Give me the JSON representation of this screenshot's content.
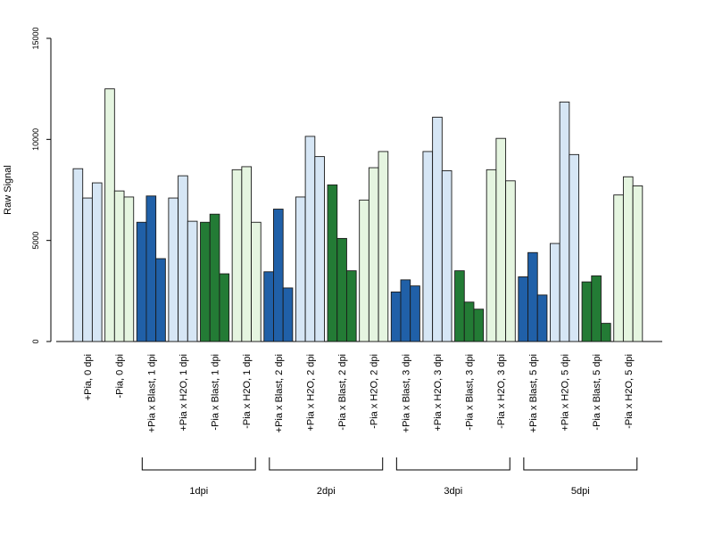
{
  "chart_data": {
    "type": "bar",
    "title": "",
    "xlabel": "",
    "ylabel": "Raw Signal",
    "ylim": [
      0,
      15000
    ],
    "yticks": [
      0,
      5000,
      10000,
      15000
    ],
    "grid": false,
    "legend": "none",
    "categories": [
      "+Pia, 0 dpi",
      "-Pia, 0 dpi",
      "+Pia x Blast, 1 dpi",
      "+Pia x H2O, 1 dpi",
      "-Pia x Blast, 1 dpi",
      "-Pia x H2O, 1 dpi",
      "+Pia x Blast, 2 dpi",
      "+Pia x H2O, 2 dpi",
      "-Pia x Blast, 2 dpi",
      "-Pia x H2O, 2 dpi",
      "+Pia x Blast, 3 dpi",
      "+Pia x H2O, 3 dpi",
      "-Pia x Blast, 3 dpi",
      "-Pia x H2O, 3 dpi",
      "+Pia x Blast, 5 dpi",
      "+Pia x H2O, 5 dpi",
      "-Pia x Blast, 5 dpi",
      "-Pia x H2O, 5 dpi"
    ],
    "replicates": [
      [
        8550,
        7100,
        7850
      ],
      [
        12500,
        7450,
        7150
      ],
      [
        5900,
        7200,
        4100
      ],
      [
        7100,
        8200,
        5950
      ],
      [
        5900,
        6300,
        3350
      ],
      [
        8500,
        8650,
        5900
      ],
      [
        3450,
        6550,
        2650
      ],
      [
        7150,
        10150,
        9150
      ],
      [
        7750,
        5100,
        3500
      ],
      [
        7000,
        8600,
        9400
      ],
      [
        2450,
        3050,
        2750
      ],
      [
        9400,
        11100,
        8450
      ],
      [
        3500,
        1950,
        1600
      ],
      [
        8500,
        10050,
        7950
      ],
      [
        3200,
        4400,
        2300
      ],
      [
        4850,
        11850,
        9250
      ],
      [
        2950,
        3250,
        900
      ],
      [
        7250,
        8150,
        7700
      ]
    ],
    "category_colors": [
      "#d6e6f5",
      "#e5f5e0",
      "#2060a8",
      "#d6e6f5",
      "#237b35",
      "#e5f5e0",
      "#2060a8",
      "#d6e6f5",
      "#237b35",
      "#e5f5e0",
      "#2060a8",
      "#d6e6f5",
      "#237b35",
      "#e5f5e0",
      "#2060a8",
      "#d6e6f5",
      "#237b35",
      "#e5f5e0"
    ],
    "groups": [
      {
        "label": "1dpi",
        "start": 2,
        "end": 5
      },
      {
        "label": "2dpi",
        "start": 6,
        "end": 9
      },
      {
        "label": "3dpi",
        "start": 10,
        "end": 13
      },
      {
        "label": "5dpi",
        "start": 14,
        "end": 17
      }
    ]
  }
}
